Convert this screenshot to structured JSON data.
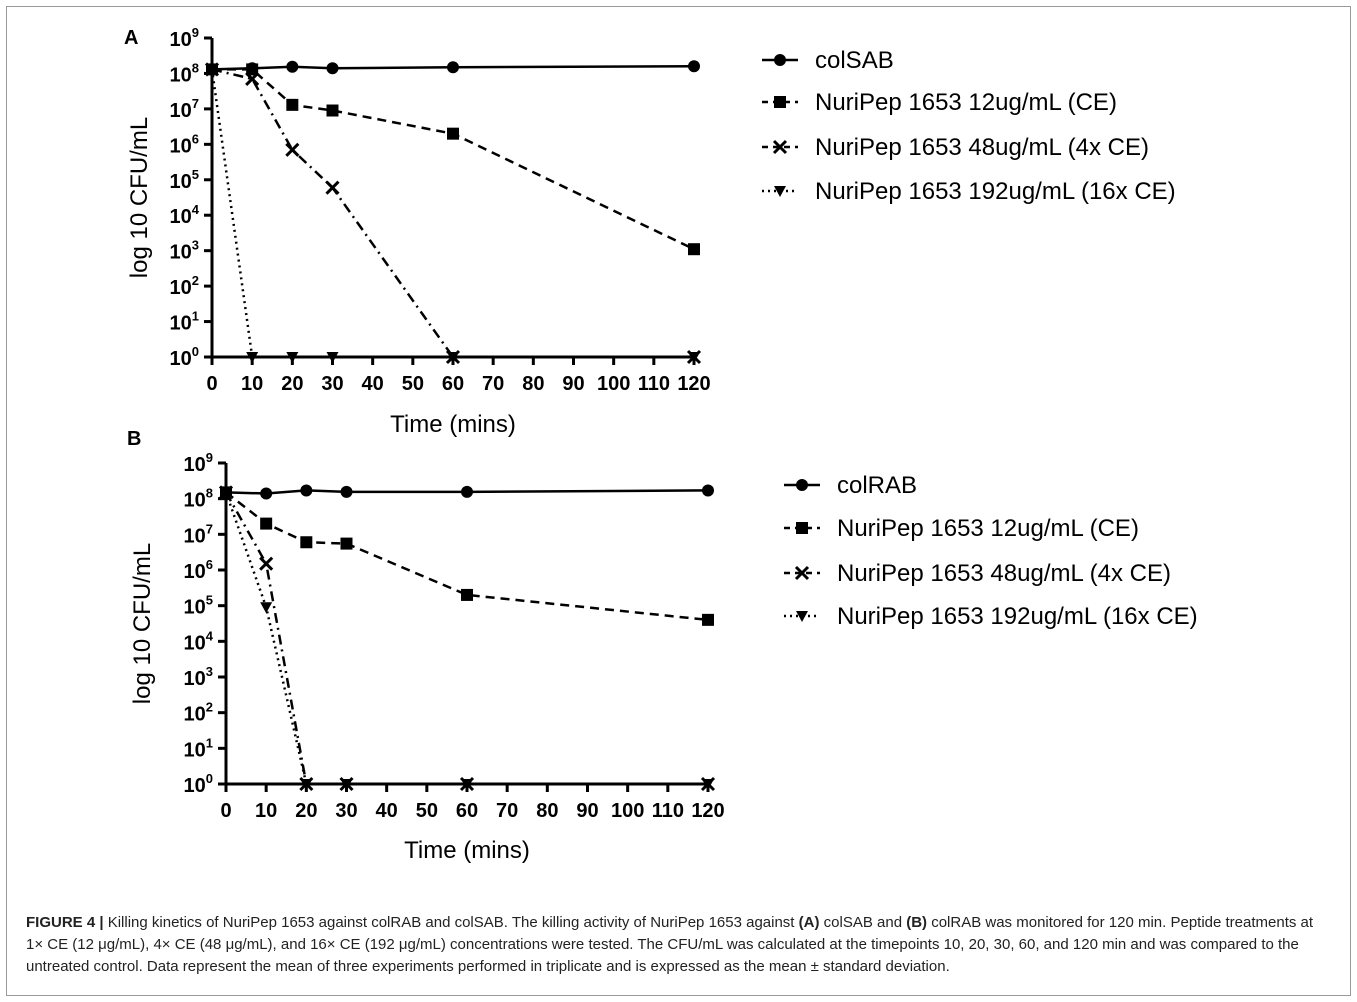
{
  "chart_data": [
    {
      "panel": "A",
      "type": "line",
      "y_scale": "log",
      "xlabel": "Time (mins)",
      "ylabel": "log 10 CFU/mL",
      "xlim": [
        0,
        120
      ],
      "ylim": [
        1,
        1000000000
      ],
      "x_ticks": [
        0,
        10,
        20,
        30,
        40,
        50,
        60,
        70,
        80,
        90,
        100,
        110,
        120
      ],
      "x_tick_labels": [
        "0",
        "10",
        "20",
        "30",
        "40",
        "50",
        "60",
        "70",
        "80",
        "90",
        "100",
        "110",
        "120"
      ],
      "y_tick_exponents": [
        "0",
        "1",
        "2",
        "3",
        "4",
        "5",
        "6",
        "7",
        "8",
        "9"
      ],
      "legend_position": "right",
      "series": [
        {
          "name": "colSAB",
          "marker": "circle",
          "dash": "solid",
          "x": [
            0,
            10,
            20,
            30,
            60,
            120
          ],
          "y": [
            130000000,
            140000000,
            155000000,
            140000000,
            150000000,
            160000000
          ]
        },
        {
          "name": "NuriPep 1653 12ug/mL (CE)",
          "marker": "square",
          "dash": "dashed",
          "x": [
            0,
            10,
            20,
            30,
            60,
            120
          ],
          "y": [
            130000000,
            130000000,
            13000000,
            9000000,
            2000000,
            1100
          ]
        },
        {
          "name": "NuriPep 1653 48ug/mL (4x CE)",
          "marker": "x",
          "dash": "dashdot",
          "x": [
            0,
            10,
            20,
            30,
            60,
            120
          ],
          "y": [
            130000000,
            70000000,
            700000,
            60000,
            1,
            1
          ]
        },
        {
          "name": "NuriPep 1653 192ug/mL (16x CE)",
          "marker": "triangle-down",
          "dash": "dotted",
          "x": [
            0,
            10,
            20,
            30,
            60,
            120
          ],
          "y": [
            130000000,
            1,
            1,
            1,
            1,
            1
          ]
        }
      ]
    },
    {
      "panel": "B",
      "type": "line",
      "y_scale": "log",
      "xlabel": "Time (mins)",
      "ylabel": "log 10 CFU/mL",
      "xlim": [
        0,
        120
      ],
      "ylim": [
        1,
        1000000000
      ],
      "x_ticks": [
        0,
        10,
        20,
        30,
        40,
        50,
        60,
        70,
        80,
        90,
        100,
        110,
        120
      ],
      "x_tick_labels": [
        "0",
        "10",
        "20",
        "30",
        "40",
        "50",
        "60",
        "70",
        "80",
        "90",
        "100",
        "110",
        "120"
      ],
      "y_tick_exponents": [
        "0",
        "1",
        "2",
        "3",
        "4",
        "5",
        "6",
        "7",
        "8",
        "9"
      ],
      "legend_position": "right",
      "series": [
        {
          "name": "colRAB",
          "marker": "circle",
          "dash": "solid",
          "x": [
            0,
            10,
            20,
            30,
            60,
            120
          ],
          "y": [
            150000000,
            140000000,
            170000000,
            155000000,
            155000000,
            170000000
          ]
        },
        {
          "name": "NuriPep 1653 12ug/mL (CE)",
          "marker": "square",
          "dash": "dashed",
          "x": [
            0,
            10,
            20,
            30,
            60,
            120
          ],
          "y": [
            150000000,
            20000000,
            6000000,
            5500000,
            200000,
            40000
          ]
        },
        {
          "name": "NuriPep 1653 48ug/mL (4x CE)",
          "marker": "x",
          "dash": "dashdot",
          "x": [
            0,
            10,
            20,
            30,
            60,
            120
          ],
          "y": [
            150000000,
            1500000,
            1,
            1,
            1,
            1
          ]
        },
        {
          "name": "NuriPep 1653 192ug/mL (16x CE)",
          "marker": "triangle-down",
          "dash": "dotted",
          "x": [
            0,
            10,
            20,
            30,
            60,
            120
          ],
          "y": [
            150000000,
            90000,
            1,
            1,
            1,
            1
          ]
        }
      ]
    }
  ],
  "caption": {
    "figure_label": "FIGURE 4 |",
    "text_1": " Killing kinetics of NuriPep 1653 against colRAB and colSAB. The killing activity of NuriPep 1653 against ",
    "ref_a": "(A)",
    "text_2": " colSAB and ",
    "ref_b": "(B)",
    "text_3": " colRAB was monitored for 120 min. Peptide treatments at 1× CE (12 μg/mL), 4× CE (48 μg/mL), and 16× CE (192 μg/mL) concentrations were tested. The CFU/mL was calculated at the timepoints 10, 20, 30, 60, and 120 min and was compared to the untreated control. Data represent the mean of three experiments performed in triplicate and is expressed as the mean ± standard deviation."
  }
}
